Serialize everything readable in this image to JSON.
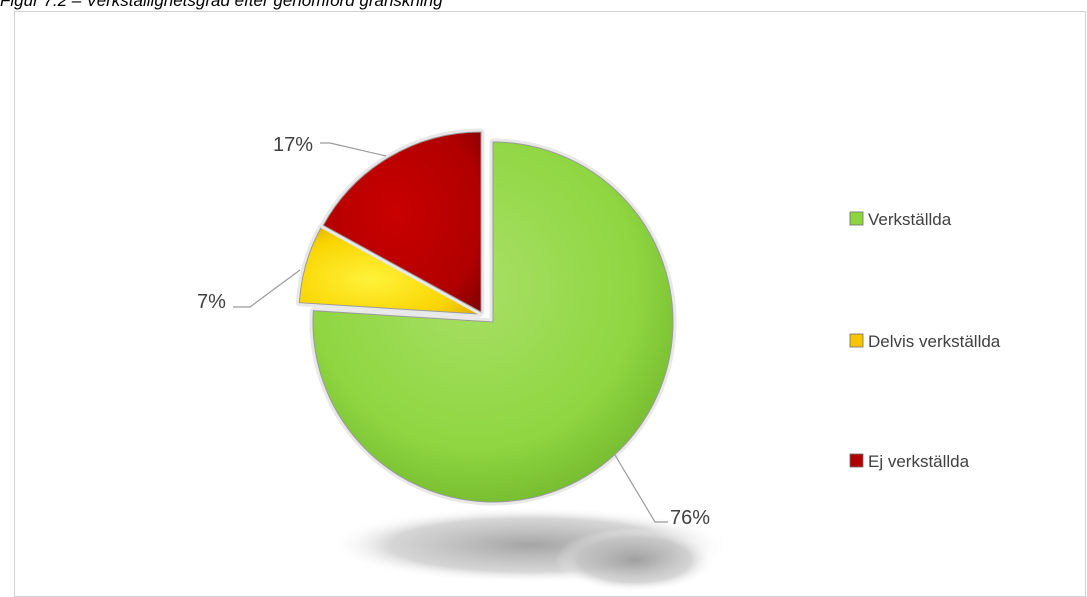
{
  "figure": {
    "caption": "Figur 7.2 – Verkställighetsgrad efter genomförd granskning"
  },
  "chart_data": {
    "type": "pie",
    "categories": [
      "Verkställda",
      "Delvis verkställda",
      "Ej verkställda"
    ],
    "values": [
      76,
      7,
      17
    ],
    "data_labels": [
      "76%",
      "7%",
      "17%"
    ],
    "unit": "%",
    "legend": {
      "position": "right",
      "entries": [
        "Verkställda",
        "Delvis verkställda",
        "Ej verkställda"
      ]
    },
    "colors": [
      "#8dd63f",
      "#f7c600",
      "#b00000"
    ],
    "exploded": true,
    "style_3d": true
  }
}
